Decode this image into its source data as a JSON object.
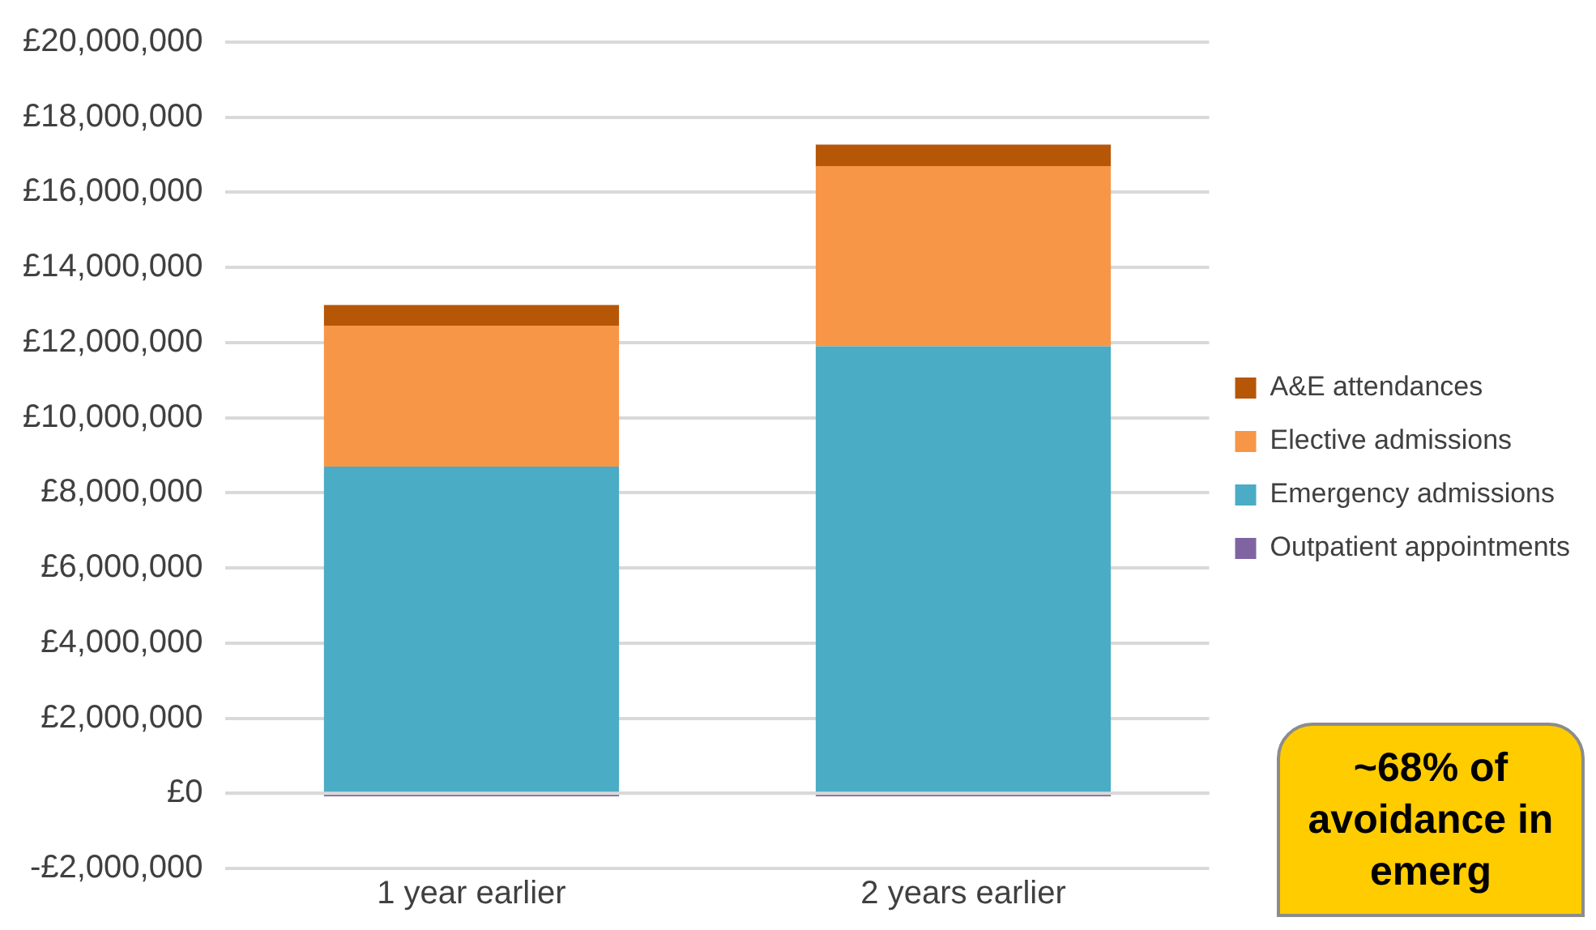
{
  "chart_data": {
    "type": "bar",
    "stacked": true,
    "categories": [
      "1 year earlier",
      "2 years earlier"
    ],
    "series": [
      {
        "name": "Outpatient appointments",
        "color": "#8064a2",
        "values": [
          -80000,
          -80000
        ]
      },
      {
        "name": "Emergency admissions",
        "color": "#4bacc6",
        "values": [
          8700000,
          11900000
        ]
      },
      {
        "name": "Elective admissions",
        "color": "#f79646",
        "values": [
          3750000,
          4800000
        ]
      },
      {
        "name": "A&E attendances",
        "color": "#b65708",
        "values": [
          550000,
          570000
        ]
      }
    ],
    "ylim": [
      -2000000,
      20000000
    ],
    "yticks": [
      {
        "value": -2000000,
        "label": "-£2,000,000"
      },
      {
        "value": 0,
        "label": "£0"
      },
      {
        "value": 2000000,
        "label": "£2,000,000"
      },
      {
        "value": 4000000,
        "label": "£4,000,000"
      },
      {
        "value": 6000000,
        "label": "£6,000,000"
      },
      {
        "value": 8000000,
        "label": "£8,000,000"
      },
      {
        "value": 10000000,
        "label": "£10,000,000"
      },
      {
        "value": 12000000,
        "label": "£12,000,000"
      },
      {
        "value": 14000000,
        "label": "£14,000,000"
      },
      {
        "value": 16000000,
        "label": "£16,000,000"
      },
      {
        "value": 18000000,
        "label": "£18,000,000"
      },
      {
        "value": 20000000,
        "label": "£20,000,000"
      }
    ],
    "grid": "y",
    "legend": "right",
    "annotations": [
      "~68% of avoidance in emerg"
    ]
  }
}
